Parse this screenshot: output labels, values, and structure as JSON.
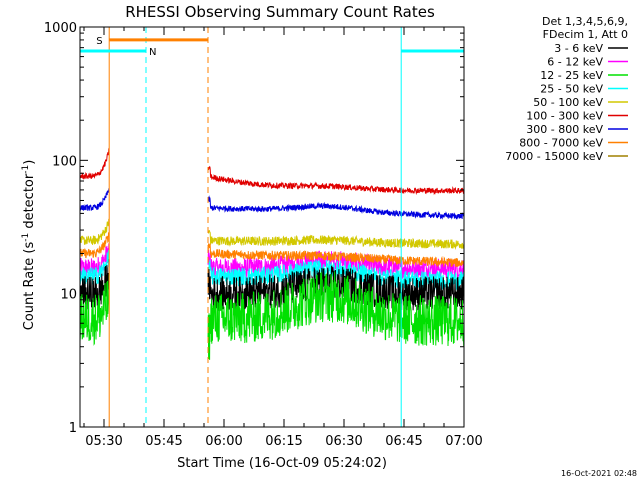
{
  "chart_data": {
    "type": "line",
    "title": "RHESSI Observing Summary Count Rates",
    "xlabel": "Start Time (16-Oct-09 05:24:02)",
    "ylabel": {
      "main": "Count Rate (s",
      "sup1": "-1",
      "mid": " detector",
      "sup2": "-1",
      "end": ")"
    },
    "x_unit": "minutes after 05:24:02",
    "xlim": [
      0,
      96
    ],
    "ylim": [
      1,
      1000
    ],
    "y_scale": "log",
    "xticks": [
      {
        "x": 6,
        "label": "05:30"
      },
      {
        "x": 21,
        "label": "05:45"
      },
      {
        "x": 36,
        "label": "06:00"
      },
      {
        "x": 51,
        "label": "06:15"
      },
      {
        "x": 66,
        "label": "06:30"
      },
      {
        "x": 81,
        "label": "06:45"
      },
      {
        "x": 96,
        "label": "07:00"
      }
    ],
    "yticks": [
      {
        "y": 1,
        "label": "1"
      },
      {
        "y": 10,
        "label": "10"
      },
      {
        "y": 100,
        "label": "100"
      },
      {
        "y": 1000,
        "label": "1000"
      }
    ],
    "legend": {
      "header_line1": "Det 1,3,4,5,6,9,",
      "header_line2": "FDecim 1, Att 0",
      "entries": [
        {
          "label": "3 - 6 keV",
          "color": "#000000"
        },
        {
          "label": "6 - 12 keV",
          "color": "#ff00ff"
        },
        {
          "label": "12 - 25 keV",
          "color": "#00e000"
        },
        {
          "label": "25 - 50 keV",
          "color": "#00ffff"
        },
        {
          "label": "50 - 100 keV",
          "color": "#d2c800"
        },
        {
          "label": "100 - 300 keV",
          "color": "#e00000"
        },
        {
          "label": "300 - 800 keV",
          "color": "#0000e0"
        },
        {
          "label": "800 - 7000 keV",
          "color": "#ff8000"
        },
        {
          "label": "7000 - 15000 keV",
          "color": "#a08000"
        }
      ]
    },
    "segments": [
      [
        0,
        7.3
      ],
      [
        32,
        96
      ]
    ],
    "series": [
      {
        "name": "3 - 6 keV",
        "color": "#000000",
        "start": 10,
        "end": 10,
        "hump": 0.2,
        "noise": 0.3
      },
      {
        "name": "6 - 12 keV",
        "color": "#ff00ff",
        "start": 15.5,
        "end": 15.5,
        "hump": 0.14,
        "noise": 0.18
      },
      {
        "name": "12 - 25 keV",
        "color": "#00e000",
        "start": 6.5,
        "end": 6.2,
        "hump": 0.5,
        "noise": 0.45
      },
      {
        "name": "25 - 50 keV",
        "color": "#00ffff",
        "start": 13.5,
        "end": 12.5,
        "hump": 0.18,
        "noise": 0.16
      },
      {
        "name": "50 - 100 keV",
        "color": "#d2c800",
        "start": 25,
        "end": 23.5,
        "hump": 0.04,
        "noise": 0.08
      },
      {
        "name": "100 - 300 keV",
        "color": "#e00000",
        "start": 76,
        "end": 59,
        "hump": 0.05,
        "noise": 0.05
      },
      {
        "name": "300 - 800 keV",
        "color": "#0000e0",
        "start": 44,
        "end": 38,
        "hump": 0.1,
        "noise": 0.05
      },
      {
        "name": "800 - 7000 keV",
        "color": "#ff8000",
        "start": 20,
        "end": 17,
        "hump": 0.03,
        "noise": 0.08
      },
      {
        "name": "7000 - 15000 keV",
        "color": "#a08000",
        "start": 10,
        "end": 10,
        "hump": 0,
        "noise": 0
      }
    ],
    "markers": [
      {
        "type": "vline",
        "x": 7.3,
        "color": "#ff8000",
        "style": "solid"
      },
      {
        "type": "vline",
        "x": 32.0,
        "color": "#ff8000",
        "style": "dashed"
      },
      {
        "type": "vline",
        "x": 16.5,
        "color": "#00ffff",
        "style": "dashed"
      },
      {
        "type": "vline",
        "x": 80.3,
        "color": "#00ffff",
        "style": "solid"
      },
      {
        "type": "vline",
        "x": 96.0,
        "color": "#00ffff",
        "style": "dashed"
      },
      {
        "type": "vline",
        "x": 0.0,
        "color": "#00ffff",
        "style": "solid"
      }
    ],
    "intervals": [
      {
        "label": "S",
        "color": "#ff8000",
        "x_start": 7.3,
        "x_end": 32.0,
        "y": 800
      },
      {
        "label": "N",
        "color": "#00ffff",
        "x_start": 0,
        "x_end": 16.5,
        "y": 660
      },
      {
        "label": "",
        "color": "#00ffff",
        "x_start": 80.3,
        "x_end": 96.0,
        "y": 660
      }
    ],
    "flare_rise": {
      "x_start": 2.5,
      "x_end": 7.3,
      "peak_red": 120,
      "peak_blue": 62
    }
  },
  "footer": {
    "timestamp": "16-Oct-2021 02:48"
  }
}
